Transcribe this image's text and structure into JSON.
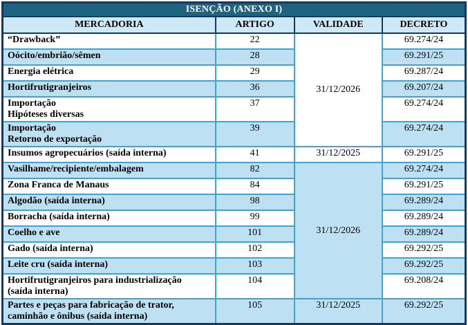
{
  "title": "ISENÇÃO (ANEXO I)",
  "columns": [
    "MERCADORIA",
    "ARTIGO",
    "VALIDADE",
    "DECRETO"
  ],
  "merged_validade": {
    "group1": "31/12/2026",
    "group2": "31/12/2026"
  },
  "rows": [
    {
      "mercadoria": "“Drawback”",
      "artigo": "22",
      "decreto": "69.274/24"
    },
    {
      "mercadoria": "Oócito/embrião/sêmen",
      "artigo": "28",
      "decreto": "69.291/25"
    },
    {
      "mercadoria": "Energia elétrica",
      "artigo": "29",
      "decreto": "69.287/24"
    },
    {
      "mercadoria": "Hortifrutigranjeiros",
      "artigo": "36",
      "decreto": "69.207/24"
    },
    {
      "mercadoria": "Importação\nHipóteses diversas",
      "artigo": "37",
      "decreto": "69.274/24"
    },
    {
      "mercadoria": "Importação\nRetorno de exportação",
      "artigo": "39",
      "decreto": "69.274/24"
    },
    {
      "mercadoria": "Insumos agropecuários (saída interna)",
      "artigo": "41",
      "validade": "31/12/2025",
      "decreto": "69.291/25"
    },
    {
      "mercadoria": "Vasilhame/recipiente/embalagem",
      "artigo": "82",
      "decreto": "69.274/24"
    },
    {
      "mercadoria": "Zona Franca de Manaus",
      "artigo": "84",
      "decreto": "69.291/25"
    },
    {
      "mercadoria": "Algodão (saída interna)",
      "artigo": "98",
      "decreto": "69.289/24"
    },
    {
      "mercadoria": "Borracha (saída interna)",
      "artigo": "99",
      "decreto": "69.289/24"
    },
    {
      "mercadoria": "Coelho e ave",
      "artigo": "101",
      "decreto": "69.289/24"
    },
    {
      "mercadoria": "Gado (saída interna)",
      "artigo": "102",
      "decreto": "69.292/25"
    },
    {
      "mercadoria": "Leite cru (saída interna)",
      "artigo": "103",
      "decreto": "69.292/25"
    },
    {
      "mercadoria": "Hortifrutigranjeiros para industrialização\n(saída interna)",
      "artigo": "104",
      "decreto": "69.208/24"
    },
    {
      "mercadoria": "Partes e peças para fabricação de trator,\ncaminhão e ônibus (saída interna)",
      "artigo": "105",
      "validade": "31/12/2025",
      "decreto": "69.292/25"
    }
  ]
}
